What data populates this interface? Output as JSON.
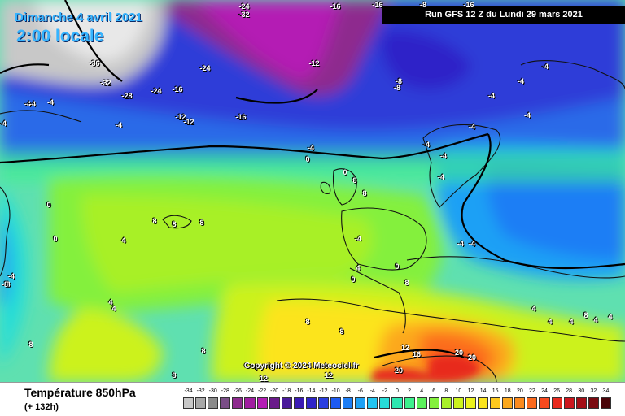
{
  "header": {
    "date_label": "Dimanche 4 avril 2021",
    "time_label": "2:00 locale",
    "run_label": "Run GFS 12 Z du Lundi 29 mars 2021"
  },
  "copyright": "Copyright © 2024 Meteociel.fr",
  "footer": {
    "parameter": "Température 850hPa",
    "forecast_offset": "(+ 132h)"
  },
  "legend": {
    "ticks": [
      "-34",
      "-32",
      "-30",
      "-28",
      "-26",
      "-24",
      "-22",
      "-20",
      "-18",
      "-16",
      "-14",
      "-12",
      "-10",
      "-8",
      "-6",
      "-4",
      "-2",
      "0",
      "2",
      "4",
      "6",
      "8",
      "10",
      "12",
      "14",
      "16",
      "18",
      "20",
      "22",
      "24",
      "26",
      "28",
      "30",
      "32",
      "34"
    ],
    "colors": [
      "#c8c8c8",
      "#a8a8a8",
      "#8a8a8a",
      "#7a4d86",
      "#8e2a8e",
      "#a01ea0",
      "#b41eb4",
      "#6a1a8a",
      "#4a1a9a",
      "#3a1ab4",
      "#2f24c8",
      "#2a3ee0",
      "#1e5af0",
      "#1e7ef5",
      "#1ea0f5",
      "#22c4f0",
      "#27ddd8",
      "#2ee8b0",
      "#3cf08c",
      "#5af05a",
      "#84f03c",
      "#a8f028",
      "#ccf21e",
      "#ecf21e",
      "#fce41e",
      "#fcc81e",
      "#fca81e",
      "#fc8a1e",
      "#fc6a1e",
      "#f84a1e",
      "#e82a1e",
      "#cc161e",
      "#a40e16",
      "#7a0a10",
      "#4a0408",
      "#1a0000"
    ]
  },
  "isotherm_labels": [
    {
      "text": "-24"
    },
    {
      "text": "-16"
    },
    {
      "text": "-8"
    },
    {
      "text": "-16"
    },
    {
      "text": "-32"
    },
    {
      "text": "-36"
    },
    {
      "text": "-32"
    },
    {
      "text": "-28"
    },
    {
      "text": "-24"
    },
    {
      "text": "-16"
    },
    {
      "text": "-24"
    },
    {
      "text": "-12"
    },
    {
      "text": "-16"
    },
    {
      "text": "-12"
    },
    {
      "text": "-12"
    },
    {
      "text": "-16"
    },
    {
      "text": "-8"
    },
    {
      "text": "-8"
    },
    {
      "text": "-4"
    },
    {
      "text": "-4"
    },
    {
      "text": "-4"
    },
    {
      "text": "-4"
    },
    {
      "text": "-4"
    },
    {
      "text": "-4"
    },
    {
      "text": "-4"
    },
    {
      "text": "-4"
    },
    {
      "text": "-4"
    },
    {
      "text": "-4"
    },
    {
      "text": "-4"
    },
    {
      "text": "0"
    },
    {
      "text": "-4"
    },
    {
      "text": "-4"
    },
    {
      "text": "-4"
    },
    {
      "text": "-4"
    },
    {
      "text": "-4"
    },
    {
      "text": "0"
    },
    {
      "text": "8"
    },
    {
      "text": "8"
    },
    {
      "text": "8"
    },
    {
      "text": "8"
    },
    {
      "text": "8"
    },
    {
      "text": "0"
    },
    {
      "text": "0"
    },
    {
      "text": "4"
    },
    {
      "text": "4"
    },
    {
      "text": "4"
    },
    {
      "text": "4"
    },
    {
      "text": "0"
    },
    {
      "text": "0"
    },
    {
      "text": "8"
    },
    {
      "text": "4"
    },
    {
      "text": "4"
    },
    {
      "text": "8"
    },
    {
      "text": "8"
    },
    {
      "text": "8"
    },
    {
      "text": "8"
    },
    {
      "text": "12"
    },
    {
      "text": "16"
    },
    {
      "text": "20"
    },
    {
      "text": "20"
    },
    {
      "text": "20"
    },
    {
      "text": "12"
    },
    {
      "text": "12"
    },
    {
      "text": "8"
    },
    {
      "text": "4"
    },
    {
      "text": "4"
    },
    {
      "text": "4"
    },
    {
      "text": "8"
    },
    {
      "text": "8"
    },
    {
      "text": "-4"
    },
    {
      "text": "-4"
    },
    {
      "text": "-8"
    }
  ]
}
